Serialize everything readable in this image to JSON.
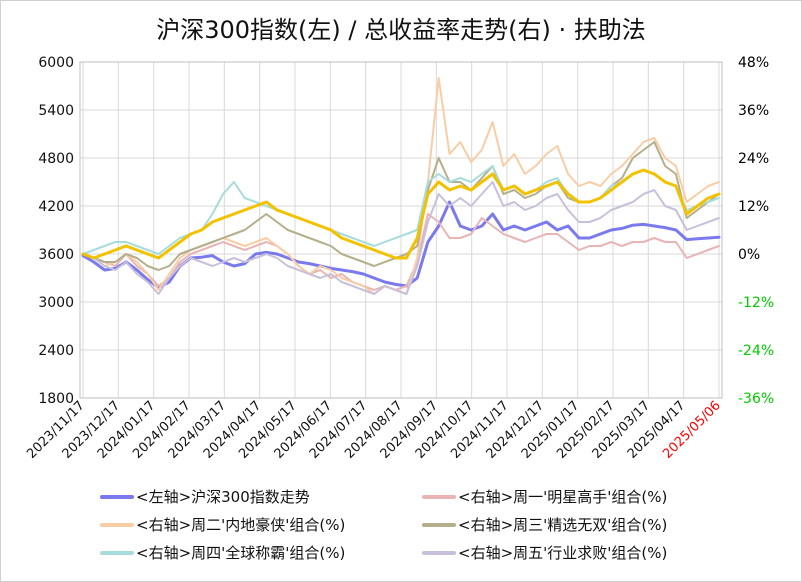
{
  "chart_data": {
    "type": "line",
    "title": "沪深300指数(左) / 总收益率走势(右) · 扶助法",
    "left_axis": {
      "ylim": [
        1800,
        6000
      ],
      "ticks": [
        "6000",
        "5400",
        "4800",
        "4200",
        "3600",
        "3000",
        "2400",
        "1800"
      ]
    },
    "right_axis": {
      "ylim": [
        -36,
        48
      ],
      "ticks": [
        "48%",
        "36%",
        "24%",
        "12%",
        "0%",
        "-12%",
        "-24%",
        "-36%"
      ],
      "positive_color": "#000000",
      "negative_color": "#00cc00"
    },
    "x_ticks": [
      "2023/11/17",
      "2023/12/17",
      "2024/01/17",
      "2024/02/17",
      "2024/03/17",
      "2024/04/17",
      "2024/05/17",
      "2024/06/17",
      "2024/07/17",
      "2024/08/17",
      "2024/09/17",
      "2024/10/17",
      "2024/11/17",
      "2024/12/17",
      "2025/01/17",
      "2025/02/17",
      "2025/03/17",
      "2025/04/17",
      "2025/05/06"
    ],
    "highlight_tick": {
      "label": "2025/05/06",
      "color": "#ff0000"
    },
    "series": [
      {
        "name": "<左轴>沪深300指数走势",
        "axis": "left",
        "color": "#7a7aee",
        "width": 3,
        "values": [
          3580,
          3500,
          3400,
          3420,
          3500,
          3400,
          3280,
          3180,
          3250,
          3450,
          3550,
          3560,
          3580,
          3500,
          3450,
          3480,
          3600,
          3620,
          3600,
          3550,
          3500,
          3480,
          3450,
          3420,
          3400,
          3380,
          3350,
          3300,
          3250,
          3220,
          3200,
          3300,
          3750,
          3950,
          4250,
          3950,
          3900,
          3950,
          4100,
          3900,
          3950,
          3900,
          3950,
          4000,
          3900,
          3950,
          3800,
          3800,
          3850,
          3900,
          3920,
          3960,
          3970,
          3950,
          3930,
          3900,
          3780,
          3790,
          3800,
          3810
        ]
      },
      {
        "name": "<右轴>周一'明星高手'组合(%)",
        "axis": "right",
        "color": "#e8b4b4",
        "width": 2,
        "values": [
          0,
          -1,
          -2,
          -3,
          0,
          -3,
          -5,
          -8,
          -6,
          -2,
          0,
          1,
          2,
          3,
          2,
          1,
          2,
          3,
          2,
          0,
          -3,
          -5,
          -4,
          -6,
          -5,
          -7,
          -8,
          -9,
          -8,
          -9,
          -8,
          -2,
          10,
          8,
          4,
          4,
          5,
          9,
          7,
          5,
          4,
          3,
          4,
          5,
          5,
          3,
          1,
          2,
          2,
          3,
          2,
          3,
          3,
          4,
          3,
          3,
          -1,
          0,
          1,
          2
        ]
      },
      {
        "name": "<右轴>周二'内地豪侠'组合(%)",
        "axis": "right",
        "color": "#f8cda6",
        "width": 2,
        "values": [
          0,
          -1,
          -3,
          -2,
          0,
          -2,
          -5,
          -9,
          -5,
          -1,
          1,
          2,
          3,
          4,
          3,
          2,
          3,
          4,
          2,
          0,
          -3,
          -5,
          -3,
          -4,
          -6,
          -7,
          -8,
          -10,
          -8,
          -9,
          -10,
          -1,
          18,
          44,
          25,
          28,
          23,
          26,
          33,
          22,
          25,
          20,
          22,
          25,
          27,
          20,
          17,
          18,
          17,
          20,
          22,
          25,
          28,
          29,
          24,
          22,
          13,
          15,
          17,
          18
        ]
      },
      {
        "name": "<右轴>周三'精选无双'组合(%)",
        "axis": "right",
        "color": "#b4ae8a",
        "width": 2,
        "values": [
          0,
          -1,
          -2,
          -2,
          0,
          -1,
          -3,
          -4,
          -3,
          0,
          1,
          2,
          3,
          4,
          5,
          6,
          8,
          10,
          8,
          6,
          5,
          4,
          3,
          2,
          0,
          -1,
          -2,
          -3,
          -2,
          -1,
          0,
          2,
          16,
          24,
          18,
          18,
          16,
          19,
          22,
          15,
          16,
          14,
          15,
          17,
          18,
          14,
          13,
          13,
          14,
          17,
          19,
          24,
          26,
          28,
          22,
          20,
          9,
          11,
          13,
          15
        ]
      },
      {
        "name": "<右轴>周四'全球称霸'组合(%)",
        "axis": "right",
        "color": "#a8dcdc",
        "width": 2,
        "values": [
          0,
          1,
          2,
          3,
          3,
          2,
          1,
          0,
          2,
          4,
          5,
          6,
          10,
          15,
          18,
          14,
          13,
          12,
          11,
          10,
          9,
          8,
          7,
          6,
          5,
          4,
          3,
          2,
          3,
          4,
          5,
          6,
          18,
          20,
          18,
          19,
          18,
          20,
          22,
          16,
          17,
          15,
          16,
          18,
          19,
          15,
          13,
          13,
          14,
          17,
          18,
          20,
          21,
          20,
          18,
          17,
          11,
          12,
          13,
          14
        ]
      },
      {
        "name": "<右轴>周五'行业求败'组合(%)",
        "axis": "right",
        "color": "#c8c0da",
        "width": 2,
        "values": [
          0,
          -1,
          -3,
          -4,
          -2,
          -5,
          -7,
          -10,
          -6,
          -3,
          -1,
          -2,
          -3,
          -2,
          -1,
          -2,
          -1,
          0,
          -1,
          -3,
          -4,
          -5,
          -6,
          -5,
          -7,
          -8,
          -9,
          -10,
          -8,
          -9,
          -10,
          -3,
          8,
          15,
          12,
          14,
          12,
          15,
          18,
          12,
          13,
          11,
          12,
          14,
          15,
          11,
          8,
          8,
          9,
          11,
          12,
          13,
          15,
          16,
          12,
          11,
          6,
          7,
          8,
          9
        ]
      },
      {
        "name": "",
        "axis": "right",
        "color": "#f2c200",
        "width": 3,
        "values": [
          0,
          -1,
          0,
          1,
          2,
          1,
          0,
          -1,
          1,
          3,
          5,
          6,
          8,
          9,
          10,
          11,
          12,
          13,
          11,
          10,
          9,
          8,
          7,
          6,
          4,
          3,
          2,
          1,
          0,
          -1,
          -1,
          4,
          15,
          18,
          16,
          17,
          16,
          18,
          20,
          16,
          17,
          15,
          16,
          17,
          18,
          15,
          13,
          13,
          14,
          16,
          18,
          20,
          21,
          20,
          18,
          17,
          10,
          12,
          14,
          15
        ]
      }
    ]
  },
  "legend": [
    {
      "label": "<左轴>沪深300指数走势",
      "color": "#7a7aee"
    },
    {
      "label": "<右轴>周一'明星高手'组合(%)",
      "color": "#e8b4b4"
    },
    {
      "label": "<右轴>周二'内地豪侠'组合(%)",
      "color": "#f8cda6"
    },
    {
      "label": "<右轴>周三'精选无双'组合(%)",
      "color": "#b4ae8a"
    },
    {
      "label": "<右轴>周四'全球称霸'组合(%)",
      "color": "#a8dcdc"
    },
    {
      "label": "<右轴>周五'行业求败'组合(%)",
      "color": "#c8c0da"
    }
  ]
}
